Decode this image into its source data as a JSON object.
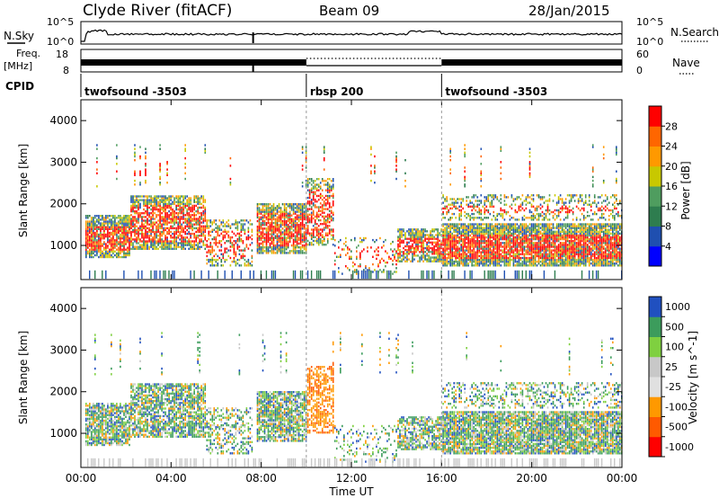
{
  "header": {
    "station": "Clyde River (fitACF)",
    "beam": "Beam 09",
    "date": "28/Jan/2015"
  },
  "top_panels": {
    "nsky_label": "N.Sky",
    "nsearch_label": "N.Search",
    "nsky_ticks": [
      "10^5",
      "10^0"
    ],
    "nsearch_ticks": [
      "10^5",
      "10^0"
    ],
    "freq_label_1": "Freq.",
    "freq_label_2": "[MHz]",
    "freq_ticks": [
      "18",
      "8"
    ],
    "nave_label": "Nave",
    "nave_ticks": [
      "60",
      "0"
    ],
    "cpid_label": "CPID"
  },
  "cpid_segments": [
    {
      "name": "twofsound -3503",
      "start_hr": 0
    },
    {
      "name": "rbsp 200",
      "start_hr": 10
    },
    {
      "name": "twofsound -3503",
      "start_hr": 16
    }
  ],
  "colors": {
    "power": [
      "#0000ff",
      "#1f4fb0",
      "#2e7d4f",
      "#4f9d5f",
      "#c8c800",
      "#ff9900",
      "#ff6600",
      "#ff0000"
    ],
    "velocity": [
      "#ff0000",
      "#ff5a00",
      "#ff9900",
      "#e0e0e0",
      "#c8c8c8",
      "#7fd040",
      "#3c9c5c",
      "#2050c0"
    ]
  },
  "chart_data": [
    {
      "type": "heatmap",
      "title": "",
      "xlabel": "",
      "ylabel": "Slant Range [km]",
      "xlim": [
        0,
        24
      ],
      "ylim": [
        180,
        4500
      ],
      "xticks": [
        "00:00",
        "04:00",
        "08:00",
        "12:00",
        "16:00",
        "20:00",
        "00:00"
      ],
      "yticks": [
        "1000",
        "2000",
        "3000",
        "4000"
      ],
      "colorbar_label": "Power [dB]",
      "colorbar_ticks": [
        "4",
        "8",
        "12",
        "16",
        "20",
        "24",
        "28"
      ]
    },
    {
      "type": "heatmap",
      "title": "",
      "xlabel": "Time UT",
      "ylabel": "Slant Range [km]",
      "xlim": [
        0,
        24
      ],
      "ylim": [
        180,
        4500
      ],
      "xticks": [
        "00:00",
        "04:00",
        "08:00",
        "12:00",
        "16:00",
        "20:00",
        "00:00"
      ],
      "yticks": [
        "1000",
        "2000",
        "3000",
        "4000"
      ],
      "colorbar_label": "Velocity [m s^-1]",
      "colorbar_ticks": [
        "1000",
        "500",
        "100",
        "25",
        "-25",
        "-100",
        "-500",
        "-1000"
      ]
    }
  ]
}
